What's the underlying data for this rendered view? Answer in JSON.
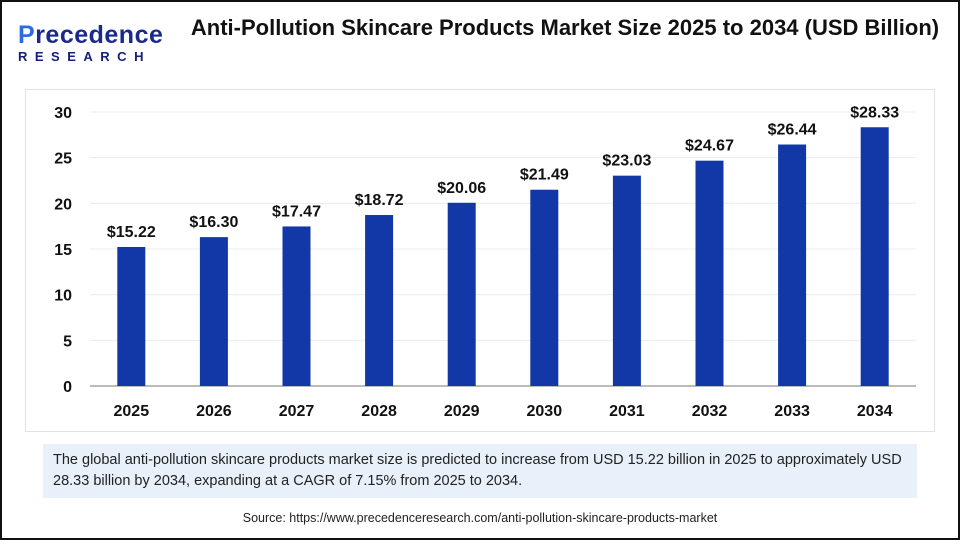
{
  "logo": {
    "line1": "Precedence",
    "line2": "RESEARCH"
  },
  "title": "Anti-Pollution Skincare Products Market Size 2025 to 2034 (USD Billion)",
  "chart_data": {
    "type": "bar",
    "title": "Anti-Pollution Skincare Products Market Size 2025 to 2034 (USD Billion)",
    "categories": [
      "2025",
      "2026",
      "2027",
      "2028",
      "2029",
      "2030",
      "2031",
      "2032",
      "2033",
      "2034"
    ],
    "values": [
      15.22,
      16.3,
      17.47,
      18.72,
      20.06,
      21.49,
      23.03,
      24.67,
      26.44,
      28.33
    ],
    "data_labels": [
      "$15.22",
      "$16.30",
      "$17.47",
      "$18.72",
      "$20.06",
      "$21.49",
      "$23.03",
      "$24.67",
      "$26.44",
      "$28.33"
    ],
    "ylim": [
      0,
      30
    ],
    "yticks": [
      0,
      5,
      10,
      15,
      20,
      25,
      30
    ],
    "grid": true,
    "bar_color": "#1237a6"
  },
  "caption": "The global anti-pollution skincare products market size is predicted to increase from USD 15.22 billion in 2025 to approximately USD 28.33 billion by 2034, expanding at a CAGR of 7.15% from 2025 to 2034.",
  "source": "Source: https://www.precedenceresearch.com/anti-pollution-skincare-products-market"
}
